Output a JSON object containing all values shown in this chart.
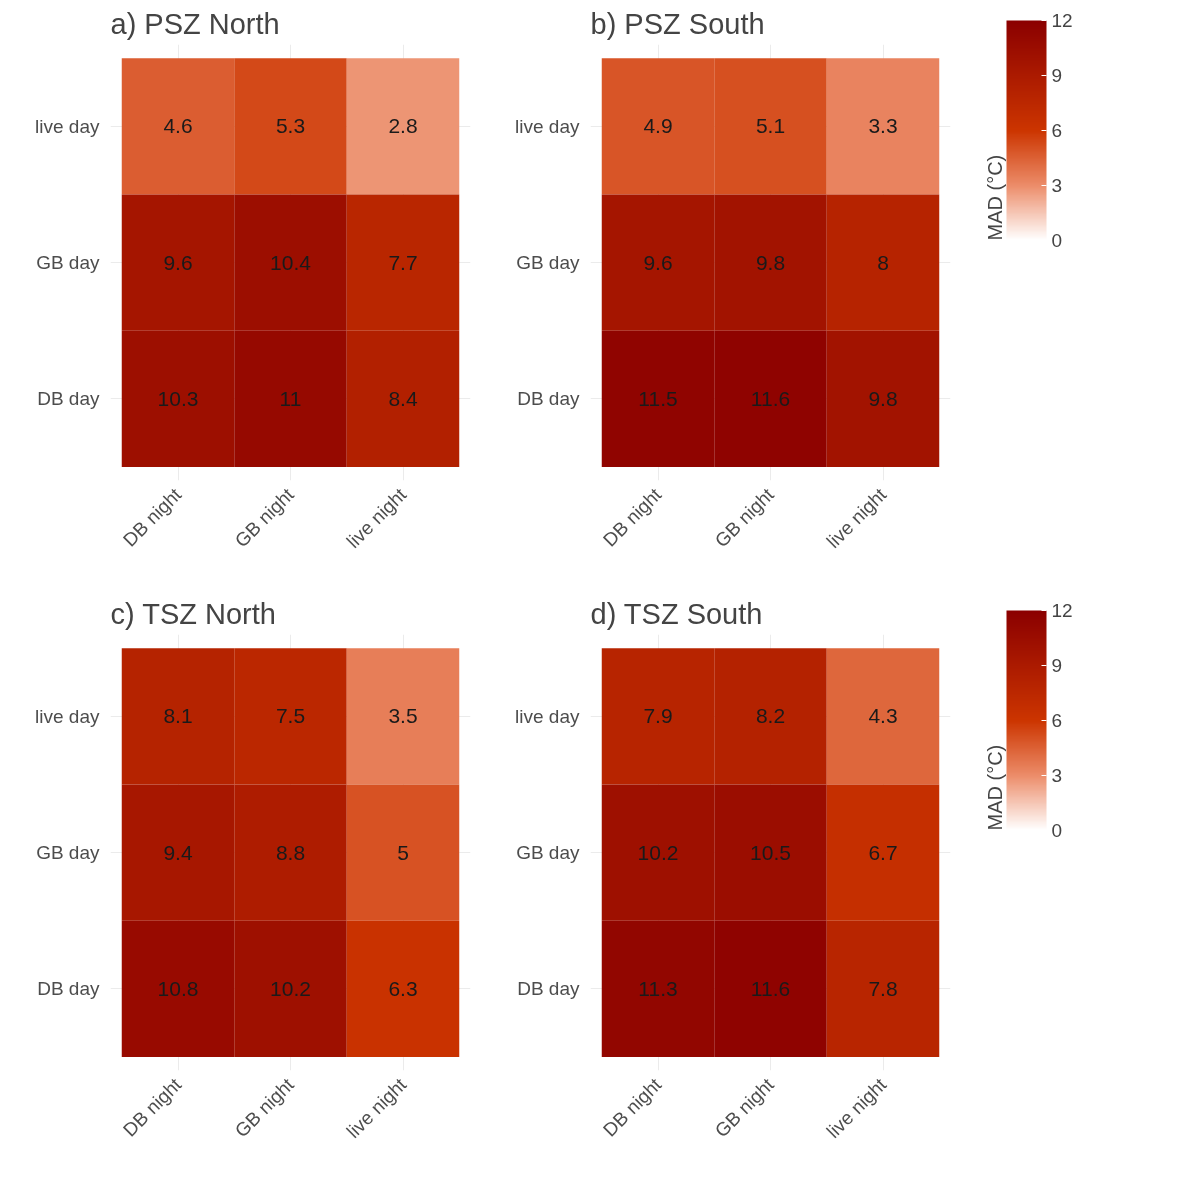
{
  "chart_data": [
    {
      "type": "heatmap",
      "title": "a) PSZ North",
      "categories": [
        "DB night",
        "GB night",
        "live night"
      ],
      "y_categories": [
        "live day",
        "GB day",
        "DB day"
      ],
      "cells": [
        [
          4.6,
          5.3,
          2.8
        ],
        [
          9.6,
          10.4,
          7.7
        ],
        [
          10.3,
          11,
          8.4
        ]
      ],
      "data_labels": true,
      "grid": true
    },
    {
      "type": "heatmap",
      "title": "b) PSZ South",
      "categories": [
        "DB night",
        "GB night",
        "live night"
      ],
      "y_categories": [
        "live day",
        "GB day",
        "DB day"
      ],
      "cells": [
        [
          4.9,
          5.1,
          3.3
        ],
        [
          9.6,
          9.8,
          8
        ],
        [
          11.5,
          11.6,
          9.8
        ]
      ],
      "clim": [
        0,
        12
      ],
      "cticks": [
        0,
        3,
        6,
        9,
        12
      ],
      "clabel": "MAD (°C)",
      "data_labels": true,
      "grid": true
    },
    {
      "type": "heatmap",
      "title": "c) TSZ North",
      "categories": [
        "DB night",
        "GB night",
        "live night"
      ],
      "y_categories": [
        "live day",
        "GB day",
        "DB day"
      ],
      "cells": [
        [
          8.1,
          7.5,
          3.5
        ],
        [
          9.4,
          8.8,
          5
        ],
        [
          10.8,
          10.2,
          6.3
        ]
      ],
      "data_labels": true,
      "grid": true
    },
    {
      "type": "heatmap",
      "title": "d) TSZ South",
      "categories": [
        "DB night",
        "GB night",
        "live night"
      ],
      "y_categories": [
        "live day",
        "GB day",
        "DB day"
      ],
      "cells": [
        [
          7.9,
          8.2,
          4.3
        ],
        [
          10.2,
          10.5,
          6.7
        ],
        [
          11.3,
          11.6,
          7.8
        ]
      ],
      "clim": [
        0,
        12
      ],
      "cticks": [
        0,
        3,
        6,
        9,
        12
      ],
      "clabel": "MAD (°C)",
      "data_labels": true,
      "grid": true
    }
  ]
}
